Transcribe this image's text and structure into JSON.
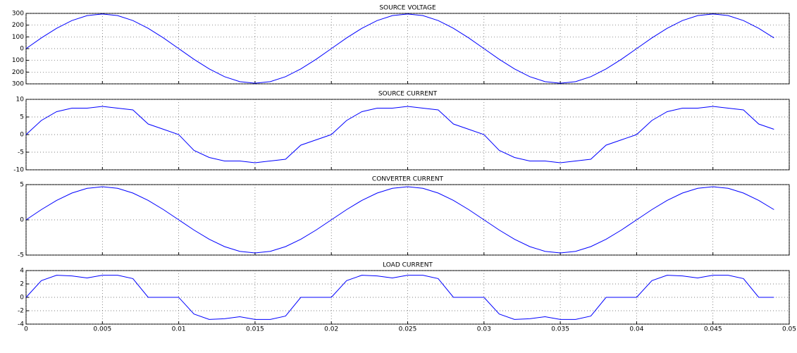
{
  "chart_data": [
    {
      "type": "line",
      "title": "SOURCE VOLTAGE",
      "grid": true,
      "show_xtick_labels": false,
      "x": [
        0,
        0.001,
        0.002,
        0.003,
        0.004,
        0.005,
        0.006,
        0.007,
        0.008,
        0.009,
        0.01,
        0.011,
        0.012,
        0.013,
        0.014,
        0.015,
        0.016,
        0.017,
        0.018,
        0.019,
        0.02,
        0.021,
        0.022,
        0.023,
        0.024,
        0.025,
        0.026,
        0.027,
        0.028,
        0.029,
        0.03,
        0.031,
        0.032,
        0.033,
        0.034,
        0.035,
        0.036,
        0.037,
        0.038,
        0.039,
        0.04,
        0.041,
        0.042,
        0.043,
        0.044,
        0.045,
        0.046,
        0.047,
        0.048,
        0.049
      ],
      "series": [
        {
          "color": "#0000ff",
          "values": [
            0,
            91,
            173,
            239,
            281,
            295,
            281,
            239,
            173,
            91,
            0,
            -91,
            -173,
            -239,
            -281,
            -295,
            -281,
            -239,
            -173,
            -91,
            0,
            91,
            173,
            239,
            281,
            295,
            281,
            239,
            173,
            91,
            0,
            -91,
            -173,
            -239,
            -281,
            -295,
            -281,
            -239,
            -173,
            -91,
            0,
            91,
            173,
            239,
            281,
            295,
            281,
            239,
            173,
            91
          ]
        }
      ],
      "xlim": [
        0,
        0.05
      ],
      "xticks": [
        0,
        0.005,
        0.01,
        0.015,
        0.02,
        0.025,
        0.03,
        0.035,
        0.04,
        0.045,
        0.05
      ],
      "ylim": [
        -300,
        300
      ],
      "yticks": [
        300,
        200,
        100,
        0,
        {
          "value": -100,
          "label": "100"
        },
        {
          "value": -200,
          "label": "200"
        },
        {
          "value": -300,
          "label": "300"
        }
      ]
    },
    {
      "type": "line",
      "title": "SOURCE CURRENT",
      "grid": true,
      "show_xtick_labels": false,
      "x": [
        0,
        0.001,
        0.002,
        0.003,
        0.004,
        0.005,
        0.006,
        0.007,
        0.008,
        0.009,
        0.01,
        0.011,
        0.012,
        0.013,
        0.014,
        0.015,
        0.016,
        0.017,
        0.018,
        0.019,
        0.02,
        0.021,
        0.022,
        0.023,
        0.024,
        0.025,
        0.026,
        0.027,
        0.028,
        0.029,
        0.03,
        0.031,
        0.032,
        0.033,
        0.034,
        0.035,
        0.036,
        0.037,
        0.038,
        0.039,
        0.04,
        0.041,
        0.042,
        0.043,
        0.044,
        0.045,
        0.046,
        0.047,
        0.048,
        0.049
      ],
      "series": [
        {
          "color": "#0000ff",
          "values": [
            0,
            4,
            6.5,
            7.5,
            7.5,
            8,
            7.5,
            7,
            3,
            1.5,
            0,
            -4.5,
            -6.5,
            -7.5,
            -7.5,
            -8,
            -7.5,
            -7,
            -3,
            -1.5,
            0,
            4,
            6.5,
            7.5,
            7.5,
            8,
            7.5,
            7,
            3,
            1.5,
            0,
            -4.5,
            -6.5,
            -7.5,
            -7.5,
            -8,
            -7.5,
            -7,
            -3,
            -1.5,
            0,
            4,
            6.5,
            7.5,
            7.5,
            8,
            7.5,
            7,
            3,
            1.5
          ]
        }
      ],
      "xlim": [
        0,
        0.05
      ],
      "xticks": [
        0,
        0.005,
        0.01,
        0.015,
        0.02,
        0.025,
        0.03,
        0.035,
        0.04,
        0.045,
        0.05
      ],
      "ylim": [
        -10,
        10
      ],
      "yticks": [
        10,
        5,
        0,
        -5,
        -10
      ]
    },
    {
      "type": "line",
      "title": "CONVERTER CURRENT",
      "grid": true,
      "show_xtick_labels": false,
      "x": [
        0,
        0.001,
        0.002,
        0.003,
        0.004,
        0.005,
        0.006,
        0.007,
        0.008,
        0.009,
        0.01,
        0.011,
        0.012,
        0.013,
        0.014,
        0.015,
        0.016,
        0.017,
        0.018,
        0.019,
        0.02,
        0.021,
        0.022,
        0.023,
        0.024,
        0.025,
        0.026,
        0.027,
        0.028,
        0.029,
        0.03,
        0.031,
        0.032,
        0.033,
        0.034,
        0.035,
        0.036,
        0.037,
        0.038,
        0.039,
        0.04,
        0.041,
        0.042,
        0.043,
        0.044,
        0.045,
        0.046,
        0.047,
        0.048,
        0.049
      ],
      "series": [
        {
          "color": "#0000ff",
          "values": [
            0,
            1.45,
            2.76,
            3.8,
            4.47,
            4.7,
            4.47,
            3.8,
            2.76,
            1.45,
            0,
            -1.45,
            -2.76,
            -3.8,
            -4.47,
            -4.7,
            -4.47,
            -3.8,
            -2.76,
            -1.45,
            0,
            1.45,
            2.76,
            3.8,
            4.47,
            4.7,
            4.47,
            3.8,
            2.76,
            1.45,
            0,
            -1.45,
            -2.76,
            -3.8,
            -4.47,
            -4.7,
            -4.47,
            -3.8,
            -2.76,
            -1.45,
            0,
            1.45,
            2.76,
            3.8,
            4.47,
            4.7,
            4.47,
            3.8,
            2.76,
            1.45
          ]
        }
      ],
      "xlim": [
        0,
        0.05
      ],
      "xticks": [
        0,
        0.005,
        0.01,
        0.015,
        0.02,
        0.025,
        0.03,
        0.035,
        0.04,
        0.045,
        0.05
      ],
      "ylim": [
        -5,
        5
      ],
      "yticks": [
        5,
        0,
        -5
      ]
    },
    {
      "type": "line",
      "title": "LOAD CURRENT",
      "grid": true,
      "show_xtick_labels": true,
      "x": [
        0,
        0.001,
        0.002,
        0.003,
        0.004,
        0.005,
        0.006,
        0.007,
        0.008,
        0.009,
        0.01,
        0.011,
        0.012,
        0.013,
        0.014,
        0.015,
        0.016,
        0.017,
        0.018,
        0.019,
        0.02,
        0.021,
        0.022,
        0.023,
        0.024,
        0.025,
        0.026,
        0.027,
        0.028,
        0.029,
        0.03,
        0.031,
        0.032,
        0.033,
        0.034,
        0.035,
        0.036,
        0.037,
        0.038,
        0.039,
        0.04,
        0.041,
        0.042,
        0.043,
        0.044,
        0.045,
        0.046,
        0.047,
        0.048,
        0.049
      ],
      "series": [
        {
          "color": "#0000ff",
          "values": [
            0,
            2.5,
            3.3,
            3.2,
            2.9,
            3.3,
            3.3,
            2.8,
            0,
            0,
            0,
            -2.5,
            -3.3,
            -3.2,
            -2.9,
            -3.3,
            -3.3,
            -2.8,
            0,
            0,
            0,
            2.5,
            3.3,
            3.2,
            2.9,
            3.3,
            3.3,
            2.8,
            0,
            0,
            0,
            -2.5,
            -3.3,
            -3.2,
            -2.9,
            -3.3,
            -3.3,
            -2.8,
            0,
            0,
            0,
            2.5,
            3.3,
            3.2,
            2.9,
            3.3,
            3.3,
            2.8,
            0,
            0
          ]
        }
      ],
      "xlim": [
        0,
        0.05
      ],
      "xticks": [
        0,
        0.005,
        0.01,
        0.015,
        0.02,
        0.025,
        0.03,
        0.035,
        0.04,
        0.045,
        0.05
      ],
      "ylim": [
        -4,
        4
      ],
      "yticks": [
        4,
        2,
        0,
        -2,
        -4
      ]
    }
  ]
}
